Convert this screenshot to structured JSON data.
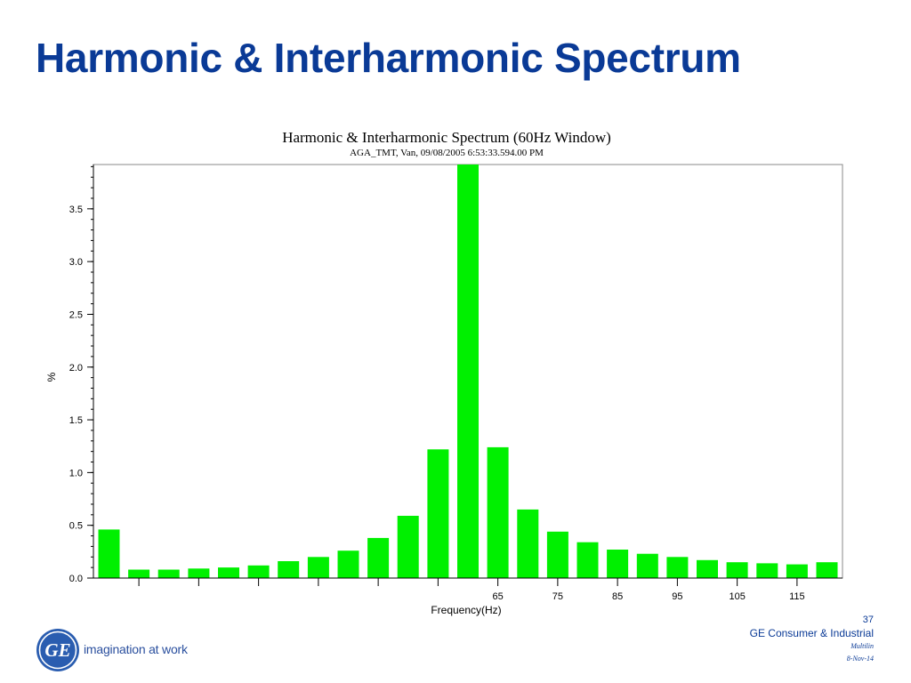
{
  "slide": {
    "title": "Harmonic & Interharmonic Spectrum"
  },
  "footer": {
    "logo_icon": "ge-logo-icon",
    "logo_text": "GE",
    "tagline": "imagination at work",
    "page_number": "37",
    "company": "GE Consumer & Industrial",
    "division": "Multilin",
    "date": "8-Nov-14",
    "brand_color": "#0a3a96"
  },
  "chart_data": {
    "type": "bar",
    "title": "Harmonic & Interharmonic Spectrum (60Hz Window)",
    "subtitle": "AGA_TMT, Van, 09/08/2005 6:53:33.594.00 PM",
    "xlabel": "Frequency(Hz)",
    "ylabel": "%",
    "bar_color": "#00f000",
    "x_tick_labels": [
      {
        "label": "65",
        "x": 65
      },
      {
        "label": "75",
        "x": 75
      },
      {
        "label": "85",
        "x": 85
      },
      {
        "label": "95",
        "x": 95
      },
      {
        "label": "105",
        "x": 105
      },
      {
        "label": "115",
        "x": 115
      }
    ],
    "x_unlabeled_ticks": [
      5,
      15,
      25,
      35,
      45,
      55
    ],
    "y_ticks": [
      {
        "label": "0.0",
        "value": 0.0
      },
      {
        "label": "0.5",
        "value": 0.5
      },
      {
        "label": "1.0",
        "value": 1.0
      },
      {
        "label": "1.5",
        "value": 1.5
      },
      {
        "label": "2.0",
        "value": 2.0
      },
      {
        "label": "2.5",
        "value": 2.5
      },
      {
        "label": "3.0",
        "value": 3.0
      },
      {
        "label": "3.5",
        "value": 3.5
      }
    ],
    "xlim": [
      -2.6,
      122.6
    ],
    "ylim": [
      0,
      3.92
    ],
    "grid": false,
    "bars": [
      {
        "x": 0,
        "value": 0.46
      },
      {
        "x": 5,
        "value": 0.08
      },
      {
        "x": 10,
        "value": 0.08
      },
      {
        "x": 15,
        "value": 0.09
      },
      {
        "x": 20,
        "value": 0.1
      },
      {
        "x": 25,
        "value": 0.12
      },
      {
        "x": 30,
        "value": 0.16
      },
      {
        "x": 35,
        "value": 0.2
      },
      {
        "x": 40,
        "value": 0.26
      },
      {
        "x": 45,
        "value": 0.38
      },
      {
        "x": 50,
        "value": 0.59
      },
      {
        "x": 55,
        "value": 1.22
      },
      {
        "x": 60,
        "value": 3.92
      },
      {
        "x": 65,
        "value": 1.24
      },
      {
        "x": 70,
        "value": 0.65
      },
      {
        "x": 75,
        "value": 0.44
      },
      {
        "x": 80,
        "value": 0.34
      },
      {
        "x": 85,
        "value": 0.27
      },
      {
        "x": 90,
        "value": 0.23
      },
      {
        "x": 95,
        "value": 0.2
      },
      {
        "x": 100,
        "value": 0.17
      },
      {
        "x": 105,
        "value": 0.15
      },
      {
        "x": 110,
        "value": 0.14
      },
      {
        "x": 115,
        "value": 0.13
      },
      {
        "x": 120,
        "value": 0.15
      }
    ]
  }
}
